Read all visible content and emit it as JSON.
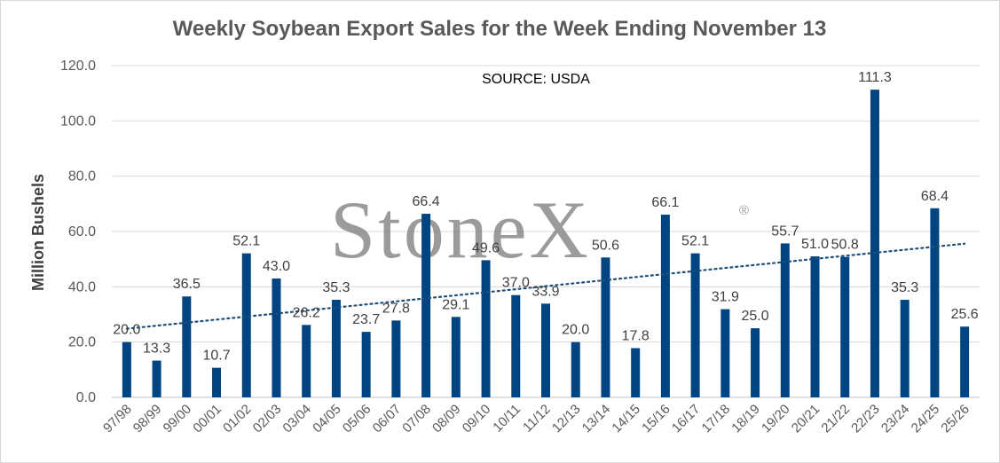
{
  "chart_data": {
    "type": "bar",
    "title": "Weekly Soybean Export Sales for the Week Ending November 13",
    "annotation": "SOURCE: USDA",
    "watermark": "StoneX",
    "watermark_mark": "®",
    "xlabel": "",
    "ylabel": "Million Bushels",
    "ylim": [
      0,
      120
    ],
    "yticks": [
      0,
      20,
      40,
      60,
      80,
      100,
      120
    ],
    "grid": true,
    "trendline": "linear, dotted",
    "bar_color": "#004481",
    "categories": [
      "97/98",
      "98/99",
      "99/00",
      "00/01",
      "01/02",
      "02/03",
      "03/04",
      "04/05",
      "05/06",
      "06/07",
      "07/08",
      "08/09",
      "09/10",
      "10/11",
      "11/12",
      "12/13",
      "13/14",
      "14/15",
      "15/16",
      "16/17",
      "17/18",
      "18/19",
      "19/20",
      "20/21",
      "21/22",
      "22/23",
      "23/24",
      "24/25",
      "25/26"
    ],
    "values": [
      20.0,
      13.3,
      36.5,
      10.7,
      52.1,
      43.0,
      26.2,
      35.3,
      23.7,
      27.8,
      66.4,
      29.1,
      49.6,
      37.0,
      33.9,
      20.0,
      50.6,
      17.8,
      66.1,
      52.1,
      31.9,
      25.0,
      55.7,
      51.0,
      50.8,
      111.3,
      35.3,
      68.4,
      25.6
    ]
  }
}
